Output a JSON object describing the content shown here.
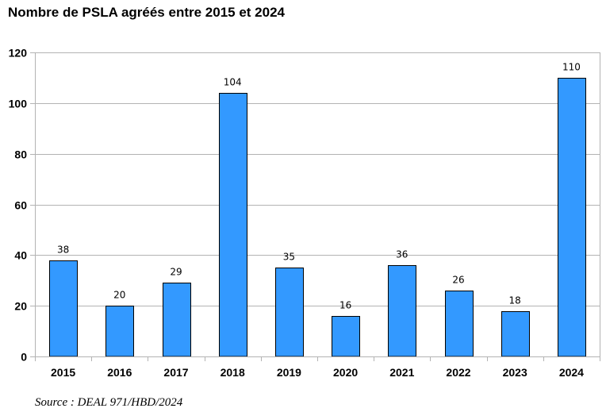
{
  "chart_data": {
    "type": "bar",
    "title": "Nombre de PSLA agréés entre 2015 et 2024",
    "categories": [
      "2015",
      "2016",
      "2017",
      "2018",
      "2019",
      "2020",
      "2021",
      "2022",
      "2023",
      "2024"
    ],
    "values": [
      38,
      20,
      29,
      104,
      35,
      16,
      36,
      26,
      18,
      110
    ],
    "ylim": [
      0,
      120
    ],
    "yticks": [
      0,
      20,
      40,
      60,
      80,
      100,
      120
    ],
    "grid": true,
    "legend": "none",
    "bar_color": "#3399ff",
    "source": "Source : DEAL 971/HBD/2024"
  }
}
